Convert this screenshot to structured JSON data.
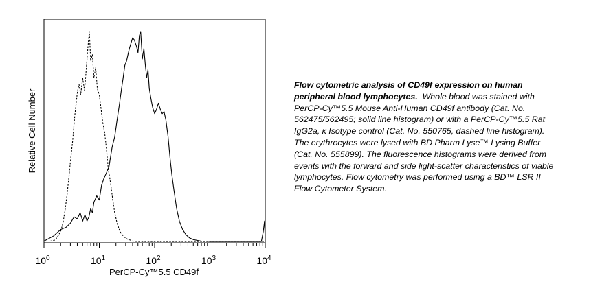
{
  "chart_data": {
    "type": "line",
    "xscale": "log",
    "xlim": [
      1,
      10000
    ],
    "ylim": [
      0,
      100
    ],
    "grid": false,
    "ylabel": "Relative Cell Number",
    "xlabel": "PerCP-Cy™5.5 CD49f",
    "xticks": [
      {
        "base": "10",
        "exp": "0",
        "value": 1
      },
      {
        "base": "10",
        "exp": "1",
        "value": 10
      },
      {
        "base": "10",
        "exp": "2",
        "value": 100
      },
      {
        "base": "10",
        "exp": "3",
        "value": 1000
      },
      {
        "base": "10",
        "exp": "4",
        "value": 10000
      }
    ],
    "series": [
      {
        "style": "dashed",
        "x": [
          1.0,
          1.3,
          1.6,
          1.8,
          2.0,
          2.2,
          2.4,
          2.6,
          2.8,
          3.0,
          3.3,
          3.6,
          4.0,
          4.3,
          4.6,
          5.0,
          5.4,
          5.8,
          6.2,
          6.6,
          7.0,
          7.5,
          8.0,
          8.6,
          9.2,
          10.0,
          10.8,
          11.5,
          12.5,
          13.5,
          14.5,
          16.0,
          17.5,
          19.0,
          21.0,
          23.0,
          25.0,
          28.0,
          32.0,
          36.0,
          40.0,
          50.0,
          100.0,
          1000.0,
          10000.0
        ],
        "y": [
          0.5,
          0.5,
          1.0,
          3.0,
          5.0,
          9.0,
          15.0,
          22.0,
          30.0,
          38.0,
          48.0,
          60.0,
          71.0,
          75.0,
          70.0,
          78.0,
          72.0,
          82.0,
          92.0,
          100.0,
          86.0,
          89.0,
          78.0,
          83.0,
          73.0,
          70.0,
          63.0,
          57.0,
          52.0,
          44.0,
          35.0,
          28.0,
          20.0,
          14.0,
          9.0,
          6.0,
          4.0,
          2.5,
          1.5,
          1.0,
          0.5,
          0.3,
          0.3,
          0.3,
          0.3
        ]
      },
      {
        "style": "solid",
        "x": [
          1.0,
          1.5,
          2.0,
          2.5,
          3.0,
          3.5,
          4.0,
          4.5,
          5.0,
          5.5,
          6.0,
          6.5,
          7.0,
          7.5,
          8.0,
          9.0,
          10.0,
          11.0,
          12.0,
          13.5,
          15.0,
          17.0,
          19.0,
          21.0,
          23.0,
          25.0,
          27.0,
          29.0,
          31.0,
          33.0,
          35.0,
          37.0,
          40.0,
          43.0,
          47.0,
          50.0,
          53.0,
          56.0,
          60.0,
          64.0,
          68.0,
          72.0,
          76.0,
          80.0,
          86.0,
          92.0,
          100.0,
          108.0,
          117.0,
          127.0,
          137.0,
          148.0,
          160.0,
          175.0,
          190.0,
          205.0,
          225.0,
          250.0,
          280.0,
          320.0,
          370.0,
          430.0,
          500.0,
          600.0,
          700.0,
          850.0,
          1000.0,
          1300.0,
          2000.0,
          5000.0,
          8500.0,
          9200.0,
          9700.0,
          10000.0
        ],
        "y": [
          0.5,
          3.0,
          6.0,
          7.0,
          9.0,
          12.0,
          11.0,
          14.0,
          10.0,
          13.0,
          10.0,
          12.0,
          16.0,
          14.0,
          19.0,
          22.0,
          20.0,
          27.0,
          30.0,
          33.0,
          36.0,
          45.0,
          50.0,
          58.0,
          65.0,
          72.0,
          78.0,
          84.0,
          86.0,
          89.0,
          92.0,
          94.0,
          97.0,
          96.0,
          93.0,
          90.0,
          98.0,
          100.0,
          87.0,
          92.0,
          84.0,
          78.0,
          82.0,
          73.0,
          68.0,
          64.0,
          61.0,
          63.0,
          66.0,
          63.0,
          61.0,
          62.0,
          58.0,
          50.0,
          40.0,
          32.0,
          24.0,
          16.0,
          10.0,
          6.0,
          3.5,
          2.0,
          1.2,
          0.8,
          0.5,
          0.5,
          0.3,
          0.3,
          0.3,
          0.3,
          0.3,
          5.0,
          10.0,
          0.5
        ]
      }
    ]
  },
  "caption": {
    "lead": "Flow cytometric analysis of CD49f expression on human peripheral blood lymphocytes.",
    "body": "Whole blood was stained with PerCP-Cy™5.5 Mouse Anti-Human CD49f antibody (Cat. No. 562475/562495; solid line histogram) or with a PerCP-Cy™5.5 Rat IgG2a, κ Isotype control (Cat. No. 550765, dashed line histogram). The erythrocytes were lysed with BD Pharm Lyse™ Lysing Buffer (Cat. No. 555899). The fluorescence histograms were derived from events with the forward and side light-scatter characteristics of viable lymphocytes. Flow cytometry was performed using a BD™ LSR II Flow Cytometer System."
  }
}
